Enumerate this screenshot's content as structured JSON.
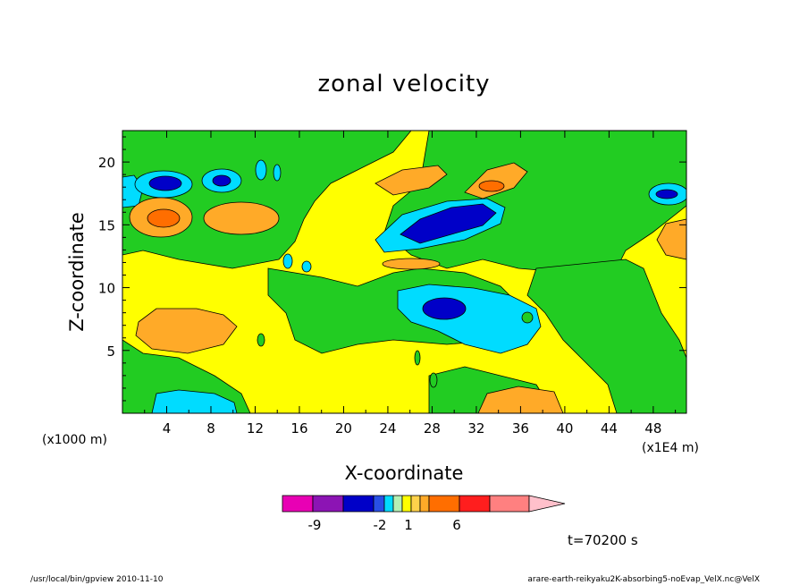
{
  "chart_data": {
    "type": "heatmap",
    "title": "zonal velocity",
    "xlabel": "X-coordinate",
    "ylabel": "Z-coordinate",
    "x_unit_label": "(x1E4 m)",
    "y_unit_label": "(x1000 m)",
    "xlim": [
      0,
      51
    ],
    "ylim": [
      0,
      22.5
    ],
    "x_ticks": [
      "4",
      "8",
      "12",
      "16",
      "20",
      "24",
      "28",
      "32",
      "36",
      "40",
      "44",
      "48"
    ],
    "y_ticks": [
      "5",
      "10",
      "15",
      "20"
    ],
    "time_label": "t=70200 s",
    "colorbar": {
      "colors": [
        "#e800b4",
        "#8c14b4",
        "#0000c8",
        "#2850e6",
        "#00dcff",
        "#b4f0b4",
        "#ffff00",
        "#ffd24b",
        "#ffaa28",
        "#ff6e00",
        "#ff1e1e",
        "#ff8080",
        "#ffc0cb"
      ],
      "labels": [
        "-9",
        "-2",
        "1",
        "6"
      ]
    },
    "field": [
      {
        "x": 4,
        "z": 18.5,
        "value": -4,
        "note": "negative cell"
      },
      {
        "x": 4.3,
        "z": 15.6,
        "value": 4,
        "note": "positive cell"
      },
      {
        "x": 9,
        "z": 18.2,
        "value": -4
      },
      {
        "x": 12,
        "z": 15.2,
        "value": 3
      },
      {
        "x": 28,
        "z": 15.2,
        "value": -8
      },
      {
        "x": 33,
        "z": 18.3,
        "value": 3
      },
      {
        "x": 29,
        "z": 8.7,
        "value": -4
      },
      {
        "x": 5,
        "z": 6.8,
        "value": 2
      },
      {
        "x": 38,
        "z": 1.2,
        "value": 2
      },
      {
        "x": 50,
        "z": 17.5,
        "value": -3
      }
    ]
  },
  "footer": {
    "left": "/usr/local/bin/gpview  2010-11-10",
    "right": "arare-earth-reikyaku2K-absorbing5-noEvap_VelX.nc@VelX"
  }
}
